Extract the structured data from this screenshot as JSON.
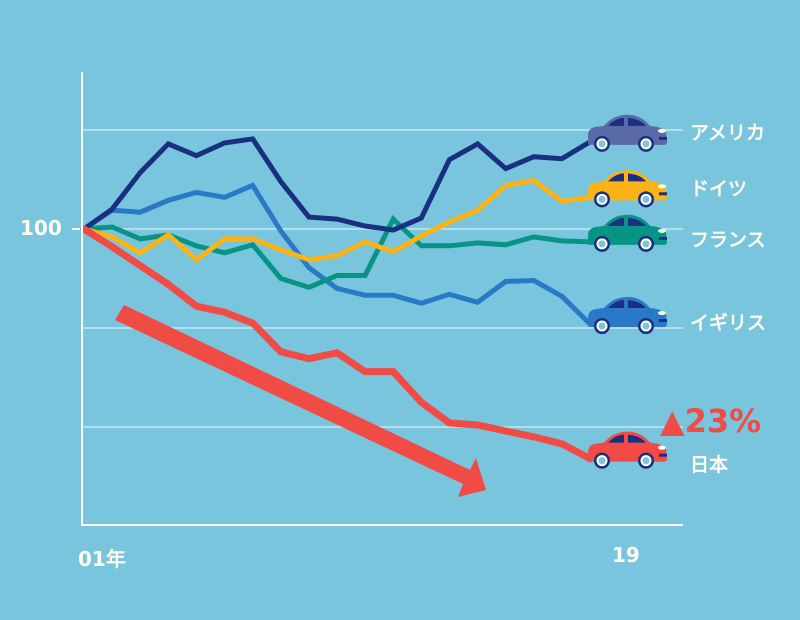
{
  "chart_data": {
    "type": "line",
    "title": "",
    "xlabel": "",
    "ylabel": "",
    "x_tick_labels": [
      "01年",
      "19"
    ],
    "y_tick_labels": [
      "100"
    ],
    "x": [
      1,
      2,
      3,
      4,
      5,
      6,
      7,
      8,
      9,
      10,
      11,
      12,
      13,
      14,
      15,
      16,
      17,
      18,
      19
    ],
    "xlim": [
      1,
      19
    ],
    "ylim": [
      70,
      115
    ],
    "gridlines": [
      110,
      100,
      90,
      80
    ],
    "series": [
      {
        "name": "アメリカ",
        "color": "#1b2f80",
        "car_color": "#5a6aa8",
        "values": [
          100,
          102,
          105.7,
          108.6,
          107.4,
          108.7,
          109.1,
          104.8,
          101.2,
          101,
          100.3,
          99.9,
          101.1,
          107,
          108.6,
          106.1,
          107.3,
          107.1,
          108.8
        ]
      },
      {
        "name": "ドイツ",
        "color": "#fbb315",
        "car_color": "#fbb315",
        "values": [
          100,
          99.2,
          97.6,
          99.4,
          96.9,
          99,
          99,
          97.9,
          96.9,
          97.3,
          98.7,
          97.7,
          99.3,
          100.7,
          101.9,
          104.4,
          104.9,
          102.8,
          103.2
        ]
      },
      {
        "name": "フランス",
        "color": "#079485",
        "car_color": "#079485",
        "values": [
          100,
          100.2,
          99,
          99.4,
          98.3,
          97.6,
          98.4,
          95,
          94.1,
          95.3,
          95.3,
          101,
          98.3,
          98.3,
          98.6,
          98.4,
          99.2,
          98.8,
          98.7
        ]
      },
      {
        "name": "イギリス",
        "color": "#2a78c8",
        "car_color": "#2a78c8",
        "values": [
          100,
          101.9,
          101.7,
          102.9,
          103.7,
          103.2,
          104.4,
          99.8,
          96.1,
          94,
          93.3,
          93.3,
          92.5,
          93.4,
          92.6,
          94.7,
          94.8,
          93.2,
          90.4
        ]
      },
      {
        "name": "日本",
        "color": "#f04b45",
        "car_color": "#f04b45",
        "values": [
          100,
          98.2,
          96.3,
          94.4,
          92.2,
          91.6,
          90.5,
          87.6,
          86.9,
          87.5,
          85.6,
          85.6,
          82.5,
          80.4,
          80.2,
          79.6,
          79,
          78.3,
          76.8
        ]
      }
    ],
    "annotations": [
      {
        "text": "▲23%",
        "series": "日本",
        "color": "#f04b45"
      }
    ],
    "colors": {
      "background": "#79c5de",
      "axis": "#ffffff",
      "grid": "#d8eef5",
      "label": "#fffdf0",
      "trend_arrow": "#f04b45"
    },
    "legend": "right, labels next to car icons at line ends"
  }
}
